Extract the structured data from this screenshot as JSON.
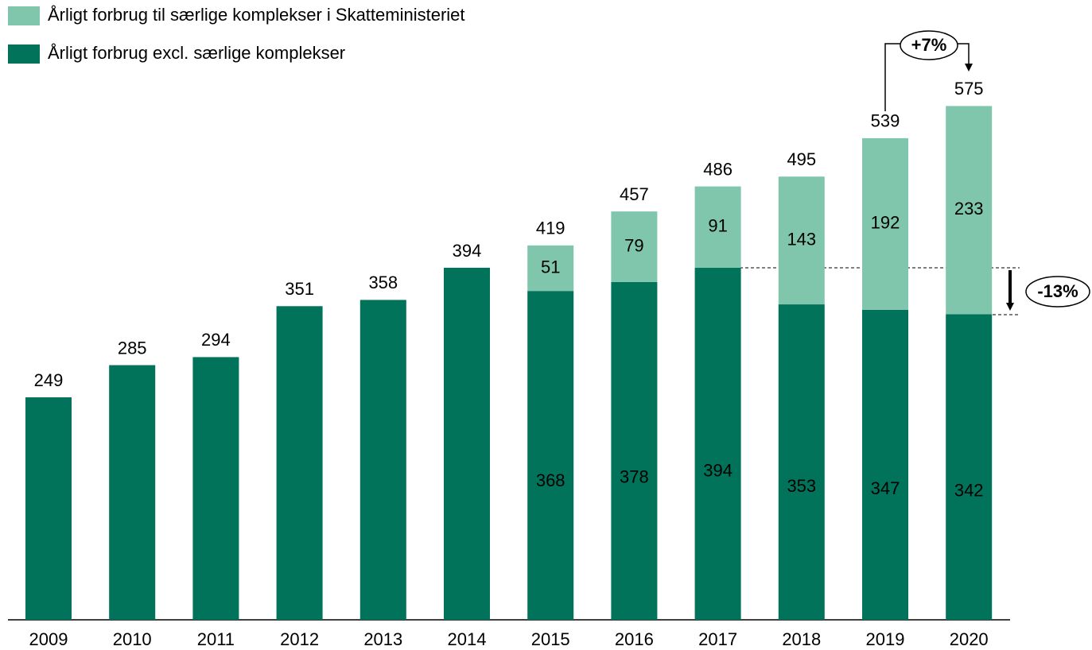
{
  "chart_data": {
    "type": "stacked-bar",
    "categories": [
      "2009",
      "2010",
      "2011",
      "2012",
      "2013",
      "2014",
      "2015",
      "2016",
      "2017",
      "2018",
      "2019",
      "2020"
    ],
    "series": [
      {
        "name": "Årligt forbrug excl. særlige komplekser",
        "color": "#00735a",
        "values": [
          249,
          285,
          294,
          351,
          358,
          394,
          368,
          378,
          394,
          353,
          347,
          342
        ]
      },
      {
        "name": "Årligt forbrug til særlige komplekser i Skatteministeriet",
        "color": "#7fc6ad",
        "values": [
          null,
          null,
          null,
          null,
          null,
          null,
          51,
          79,
          91,
          143,
          192,
          233
        ]
      }
    ],
    "totals": [
      249,
      285,
      294,
      351,
      358,
      394,
      419,
      457,
      486,
      495,
      539,
      575
    ],
    "annotations": [
      "+7%",
      "-13%"
    ]
  }
}
